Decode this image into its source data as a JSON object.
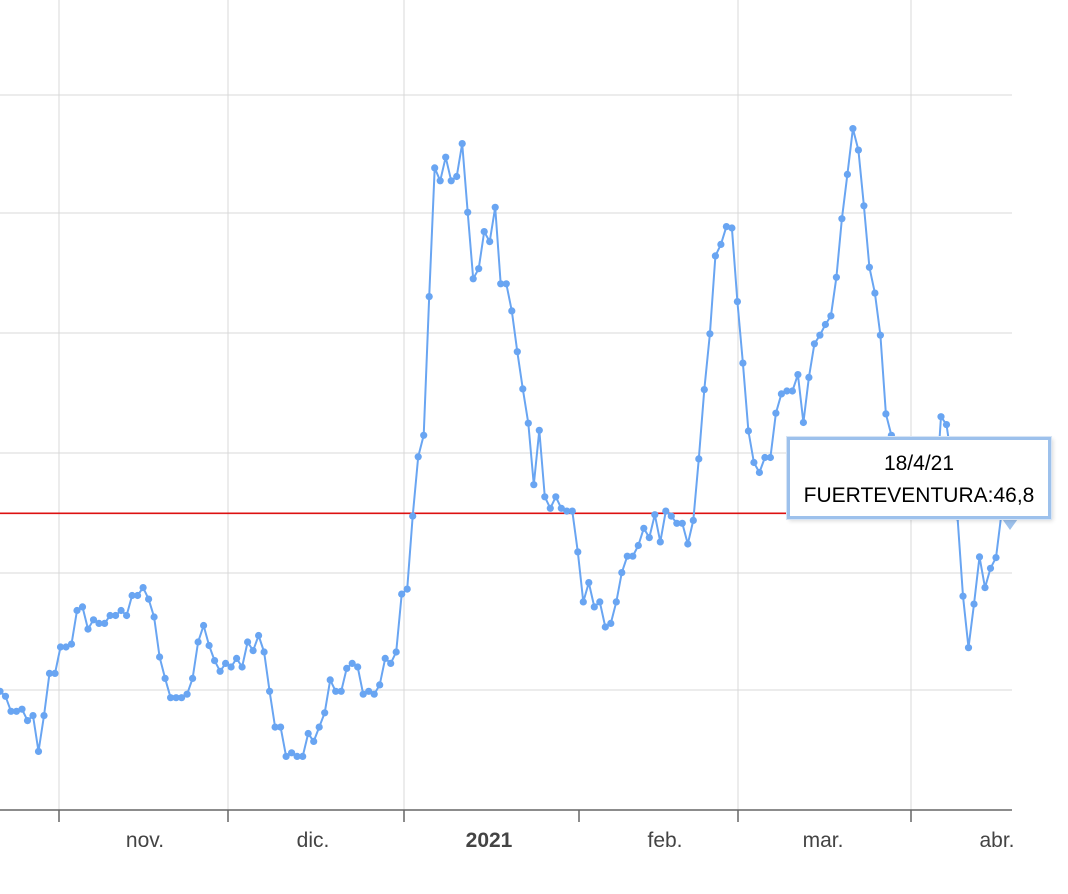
{
  "chart_data": {
    "type": "line",
    "title": "",
    "xlabel": "",
    "ylabel": "",
    "x_ticks": [
      {
        "label": "nov.",
        "bold": false
      },
      {
        "label": "dic.",
        "bold": false
      },
      {
        "label": "2021",
        "bold": true
      },
      {
        "label": "feb.",
        "bold": false
      },
      {
        "label": "mar.",
        "bold": false
      },
      {
        "label": "abr.",
        "bold": false
      }
    ],
    "grid": true,
    "legend": "none",
    "series_color": "#69a5f2",
    "reference_line": {
      "value": 0.415,
      "color": "#dd1111"
    },
    "y_range": [
      0,
      1
    ],
    "series": [
      {
        "name": "FUERTEVENTURA",
        "values": [
          0.166,
          0.159,
          0.138,
          0.138,
          0.141,
          0.125,
          0.132,
          0.082,
          0.132,
          0.191,
          0.191,
          0.228,
          0.228,
          0.232,
          0.279,
          0.284,
          0.253,
          0.266,
          0.261,
          0.261,
          0.272,
          0.272,
          0.279,
          0.272,
          0.3,
          0.3,
          0.311,
          0.295,
          0.27,
          0.214,
          0.184,
          0.157,
          0.157,
          0.157,
          0.162,
          0.184,
          0.235,
          0.258,
          0.23,
          0.209,
          0.194,
          0.205,
          0.2,
          0.212,
          0.2,
          0.235,
          0.223,
          0.244,
          0.221,
          0.166,
          0.116,
          0.116,
          0.075,
          0.08,
          0.075,
          0.075,
          0.107,
          0.096,
          0.116,
          0.136,
          0.182,
          0.166,
          0.166,
          0.198,
          0.205,
          0.2,
          0.162,
          0.166,
          0.162,
          0.175,
          0.212,
          0.205,
          0.221,
          0.302,
          0.309,
          0.411,
          0.494,
          0.524,
          0.718,
          0.898,
          0.88,
          0.913,
          0.88,
          0.886,
          0.932,
          0.836,
          0.743,
          0.757,
          0.809,
          0.795,
          0.843,
          0.736,
          0.736,
          0.698,
          0.641,
          0.589,
          0.541,
          0.455,
          0.531,
          0.438,
          0.422,
          0.438,
          0.422,
          0.418,
          0.418,
          0.361,
          0.291,
          0.318,
          0.284,
          0.291,
          0.256,
          0.261,
          0.291,
          0.332,
          0.355,
          0.355,
          0.37,
          0.394,
          0.381,
          0.413,
          0.375,
          0.418,
          0.411,
          0.401,
          0.401,
          0.372,
          0.405,
          0.491,
          0.588,
          0.666,
          0.775,
          0.791,
          0.816,
          0.814,
          0.711,
          0.625,
          0.53,
          0.486,
          0.472,
          0.493,
          0.493,
          0.555,
          0.582,
          0.586,
          0.586,
          0.609,
          0.542,
          0.605,
          0.652,
          0.664,
          0.679,
          0.691,
          0.745,
          0.827,
          0.889,
          0.953,
          0.923,
          0.845,
          0.759,
          0.723,
          0.664,
          0.554,
          0.524,
          0.497,
          0.474,
          0.461,
          0.421,
          0.413,
          0.416,
          0.416,
          0.434,
          0.55,
          0.539,
          0.485,
          0.41,
          0.299,
          0.227,
          0.288,
          0.354,
          0.311,
          0.338,
          0.353,
          0.415,
          0.436
        ],
        "tooltip": {
          "date": "18/4/21",
          "label": "FUERTEVENTURA:46,8"
        }
      }
    ]
  }
}
